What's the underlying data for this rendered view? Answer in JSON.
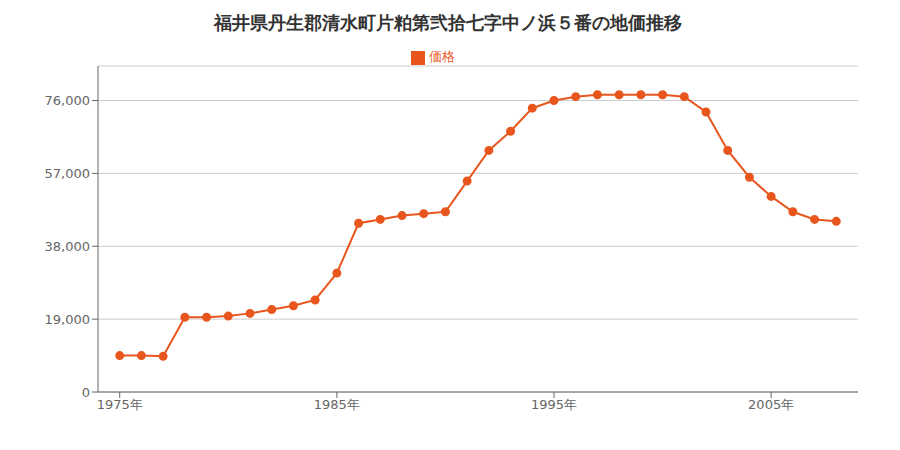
{
  "chart_data": {
    "type": "line",
    "title": "福井県丹生郡清水町片粕第弐拾七字中ノ浜５番の地価推移",
    "x": [
      1975,
      1976,
      1977,
      1978,
      1979,
      1980,
      1981,
      1982,
      1983,
      1984,
      1985,
      1986,
      1987,
      1988,
      1989,
      1990,
      1991,
      1992,
      1993,
      1994,
      1995,
      1996,
      1997,
      1998,
      1999,
      2000,
      2001,
      2002,
      2003,
      2004,
      2005,
      2006,
      2007,
      2008
    ],
    "series": [
      {
        "name": "価格",
        "color": "#e8561e",
        "marker": "circle",
        "values": [
          9500,
          9500,
          9300,
          19500,
          19500,
          19800,
          20500,
          21500,
          22500,
          24000,
          31000,
          44000,
          45000,
          46000,
          46500,
          47000,
          55000,
          63000,
          68000,
          74000,
          76000,
          77000,
          77500,
          77500,
          77500,
          77500,
          77000,
          73000,
          63000,
          56000,
          51000,
          47000,
          45000,
          44500
        ]
      }
    ],
    "xlim": [
      1974,
      2009
    ],
    "xticks": [
      {
        "value": 1975,
        "label": "1975年"
      },
      {
        "value": 1985,
        "label": "1985年"
      },
      {
        "value": 1995,
        "label": "1995年"
      },
      {
        "value": 2005,
        "label": "2005年"
      }
    ],
    "ylim": [
      0,
      85000
    ],
    "yticks": [
      0,
      {
        "value": 19000,
        "label": "19,000"
      },
      {
        "value": 38000,
        "label": "38,000"
      },
      {
        "value": 57000,
        "label": "57,000"
      },
      {
        "value": 76000,
        "label": "76,000"
      }
    ],
    "grid": true,
    "legend": "top"
  }
}
